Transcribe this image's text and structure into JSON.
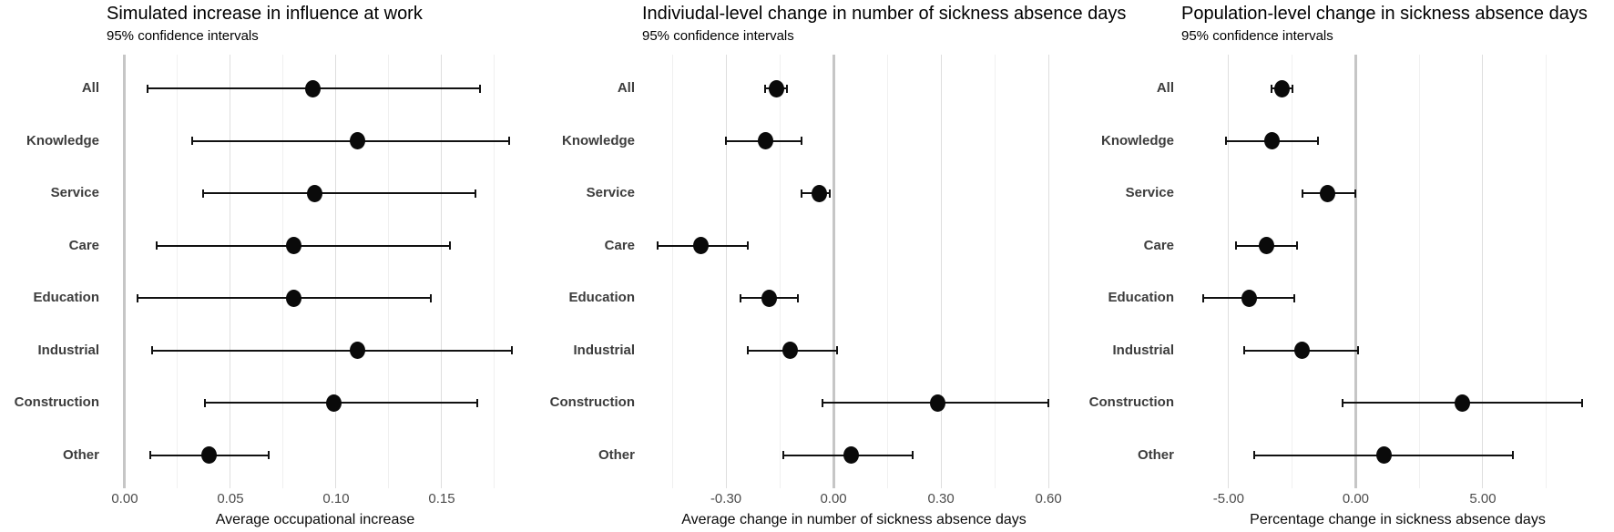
{
  "figure": {
    "background": "#ffffff",
    "text_color": "#000000",
    "category_label_color": "#3d3d3d",
    "tick_label_color": "#4d4d4d",
    "grid_major_color": "#dedede",
    "grid_minor_color": "#f0f0f0",
    "zero_line_color": "#c6c6c6",
    "point_color": "#000000"
  },
  "chart_data": [
    {
      "type": "scatter",
      "variant": "dot-and-whisker-forest",
      "title": "Simulated increase in influence at work",
      "subtitle": "95% confidence intervals",
      "xlabel": "Average occupational increase",
      "categories": [
        "All",
        "Knowledge",
        "Service",
        "Care",
        "Education",
        "Industrial",
        "Construction",
        "Other"
      ],
      "estimates": [
        0.089,
        0.11,
        0.09,
        0.08,
        0.08,
        0.11,
        0.099,
        0.04
      ],
      "ci_low": [
        0.011,
        0.032,
        0.037,
        0.015,
        0.006,
        0.013,
        0.038,
        0.012
      ],
      "ci_high": [
        0.168,
        0.182,
        0.166,
        0.154,
        0.145,
        0.183,
        0.167,
        0.068
      ],
      "xlim": [
        -0.0086,
        0.1888
      ],
      "x_ticks": [
        {
          "value": 0.0,
          "label": "0.00"
        },
        {
          "value": 0.05,
          "label": "0.05"
        },
        {
          "value": 0.1,
          "label": "0.10"
        },
        {
          "value": 0.15,
          "label": "0.15"
        }
      ],
      "x_minor_ticks": [
        0.025,
        0.075,
        0.125,
        0.175
      ],
      "zero_reference_line": 0,
      "grid": true,
      "legend": "none"
    },
    {
      "type": "scatter",
      "variant": "dot-and-whisker-forest",
      "title": "Indiviudal-level change in number of sickness absence days",
      "subtitle": "95% confidence intervals",
      "xlabel": "Average change in number of sickness absence days",
      "categories": [
        "All",
        "Knowledge",
        "Service",
        "Care",
        "Education",
        "Industrial",
        "Construction",
        "Other"
      ],
      "estimates": [
        -0.16,
        -0.19,
        -0.04,
        -0.37,
        -0.18,
        -0.12,
        0.29,
        0.05
      ],
      "ci_low": [
        -0.19,
        -0.3,
        -0.09,
        -0.49,
        -0.26,
        -0.24,
        -0.03,
        -0.14
      ],
      "ci_high": [
        -0.13,
        -0.09,
        -0.01,
        -0.24,
        -0.1,
        0.01,
        0.6,
        0.22
      ],
      "xlim": [
        -0.534,
        0.648
      ],
      "x_ticks": [
        {
          "value": -0.3,
          "label": "-0.30"
        },
        {
          "value": 0.0,
          "label": "0.00"
        },
        {
          "value": 0.3,
          "label": "0.30"
        },
        {
          "value": 0.6,
          "label": "0.60"
        }
      ],
      "x_minor_ticks": [
        -0.45,
        -0.15,
        0.15,
        0.45
      ],
      "zero_reference_line": 0,
      "grid": true,
      "legend": "none"
    },
    {
      "type": "scatter",
      "variant": "dot-and-whisker-forest",
      "title": "Population-level change in sickness absence days",
      "subtitle": "95% confidence intervals",
      "xlabel": "Percentage change in sickness absence days",
      "categories": [
        "All",
        "Knowledge",
        "Service",
        "Care",
        "Education",
        "Industrial",
        "Construction",
        "Other"
      ],
      "estimates": [
        -2.9,
        -3.3,
        -1.1,
        -3.5,
        -4.2,
        -2.1,
        4.2,
        1.1
      ],
      "ci_low": [
        -3.3,
        -5.1,
        -2.1,
        -4.7,
        -6.0,
        -4.4,
        -0.5,
        -4.0
      ],
      "ci_high": [
        -2.5,
        -1.5,
        0.0,
        -2.3,
        -2.4,
        0.1,
        8.9,
        6.2
      ],
      "xlim": [
        -6.86,
        10.16
      ],
      "x_ticks": [
        {
          "value": -5.0,
          "label": "-5.00"
        },
        {
          "value": 0.0,
          "label": "0.00"
        },
        {
          "value": 5.0,
          "label": "5.00"
        }
      ],
      "x_minor_ticks": [
        -2.5,
        2.5,
        7.5
      ],
      "zero_reference_line": 0,
      "grid": true,
      "legend": "none"
    }
  ]
}
